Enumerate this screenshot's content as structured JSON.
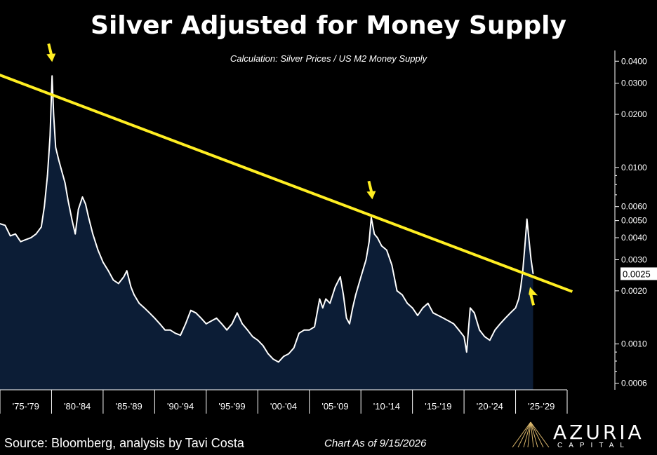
{
  "chart_data": {
    "type": "area",
    "title": "Silver Adjusted for Money Supply",
    "subtitle": "Calculation: Silver Prices / US M2 Money Supply",
    "y_scale": "log",
    "ylim": [
      0.00055,
      0.046
    ],
    "y_ticks": [
      {
        "value": 0.04,
        "label": "0.0400"
      },
      {
        "value": 0.03,
        "label": "0.0300"
      },
      {
        "value": 0.02,
        "label": "0.0200"
      },
      {
        "value": 0.01,
        "label": "0.0100"
      },
      {
        "value": 0.006,
        "label": "0.0060"
      },
      {
        "value": 0.005,
        "label": "0.0050"
      },
      {
        "value": 0.004,
        "label": "0.0040"
      },
      {
        "value": 0.003,
        "label": "0.0030"
      },
      {
        "value": 0.002,
        "label": "0.0020"
      },
      {
        "value": 0.001,
        "label": "0.0010"
      },
      {
        "value": 0.0006,
        "label": "0.0006"
      }
    ],
    "current_value_label": "0.0025",
    "current_value": 0.0025,
    "x_categories": [
      "'75-'79",
      "'80-'84",
      "'85-'89",
      "'90-'94",
      "'95-'99",
      "'00-'04",
      "'05-'09",
      "'10-'14",
      "'15-'19",
      "'20-'24",
      "'25-'29"
    ],
    "xlim": [
      1975,
      2030
    ],
    "series": [
      {
        "x": [
          1975.0,
          1975.5,
          1976.0,
          1976.5,
          1977.0,
          1977.5,
          1978.0,
          1978.5,
          1979.0,
          1979.3,
          1979.6,
          1979.85,
          1980.05,
          1980.2,
          1980.4,
          1980.7,
          1981.0,
          1981.3,
          1981.6,
          1982.0,
          1982.3,
          1982.6,
          1983.0,
          1983.3,
          1983.6,
          1984.0,
          1984.5,
          1985.0,
          1985.5,
          1986.0,
          1986.5,
          1987.0,
          1987.3,
          1987.7,
          1988.0,
          1988.5,
          1989.0,
          1989.5,
          1990.0,
          1990.5,
          1991.0,
          1991.5,
          1992.0,
          1992.5,
          1993.0,
          1993.5,
          1994.0,
          1994.5,
          1995.0,
          1995.5,
          1996.0,
          1996.5,
          1997.0,
          1997.5,
          1998.0,
          1998.5,
          1999.0,
          1999.5,
          2000.0,
          2000.5,
          2001.0,
          2001.5,
          2002.0,
          2002.5,
          2003.0,
          2003.5,
          2004.0,
          2004.5,
          2005.0,
          2005.5,
          2006.0,
          2006.3,
          2006.6,
          2007.0,
          2007.5,
          2008.0,
          2008.3,
          2008.6,
          2008.9,
          2009.2,
          2009.5,
          2010.0,
          2010.5,
          2010.8,
          2011.0,
          2011.3,
          2011.6,
          2012.0,
          2012.5,
          2013.0,
          2013.5,
          2014.0,
          2014.5,
          2015.0,
          2015.5,
          2016.0,
          2016.5,
          2017.0,
          2017.5,
          2018.0,
          2018.5,
          2019.0,
          2019.5,
          2020.0,
          2020.25,
          2020.6,
          2021.0,
          2021.5,
          2022.0,
          2022.5,
          2023.0,
          2023.5,
          2024.0,
          2024.5,
          2025.0,
          2025.3,
          2025.5,
          2025.7,
          2025.9,
          2026.1,
          2026.3,
          2026.5,
          2026.7
        ],
        "y": [
          0.0048,
          0.0047,
          0.0041,
          0.0042,
          0.0038,
          0.0039,
          0.004,
          0.0042,
          0.0046,
          0.006,
          0.009,
          0.015,
          0.033,
          0.02,
          0.013,
          0.011,
          0.0095,
          0.0082,
          0.0065,
          0.005,
          0.0042,
          0.0058,
          0.0068,
          0.0062,
          0.0052,
          0.0042,
          0.0034,
          0.0029,
          0.0026,
          0.0023,
          0.0022,
          0.0024,
          0.0026,
          0.0021,
          0.0019,
          0.0017,
          0.0016,
          0.0015,
          0.0014,
          0.0013,
          0.0012,
          0.0012,
          0.00115,
          0.00112,
          0.0013,
          0.00155,
          0.0015,
          0.0014,
          0.0013,
          0.00135,
          0.0014,
          0.0013,
          0.0012,
          0.0013,
          0.0015,
          0.0013,
          0.0012,
          0.0011,
          0.00105,
          0.00098,
          0.00088,
          0.00082,
          0.00079,
          0.00085,
          0.00088,
          0.00095,
          0.00115,
          0.0012,
          0.0012,
          0.00125,
          0.0018,
          0.0016,
          0.0018,
          0.0017,
          0.0021,
          0.0024,
          0.0019,
          0.0014,
          0.0013,
          0.0016,
          0.0019,
          0.0024,
          0.003,
          0.0038,
          0.0052,
          0.0042,
          0.004,
          0.0036,
          0.0034,
          0.0028,
          0.002,
          0.0019,
          0.0017,
          0.0016,
          0.00145,
          0.0016,
          0.0017,
          0.0015,
          0.00145,
          0.0014,
          0.00135,
          0.0013,
          0.0012,
          0.0011,
          0.0009,
          0.0016,
          0.0015,
          0.0012,
          0.0011,
          0.00105,
          0.0012,
          0.0013,
          0.0014,
          0.0015,
          0.0016,
          0.0018,
          0.0021,
          0.0026,
          0.0036,
          0.0051,
          0.0039,
          0.003,
          0.0025
        ]
      }
    ],
    "trend_line": {
      "start": {
        "x": 1973.5,
        "y": 0.036
      },
      "end": {
        "x": 2030.5,
        "y": 0.00198
      }
    },
    "annotations": [
      {
        "type": "arrow-down",
        "x": 1979.85,
        "y": 0.045
      },
      {
        "type": "arrow-down",
        "x": 2010.9,
        "y": 0.0075
      },
      {
        "type": "arrow-up",
        "x": 2026.6,
        "y": 0.00185
      }
    ],
    "grid": false,
    "legend": "none",
    "colors": {
      "line": "#ffffff",
      "area": "#0c1d36",
      "trend": "#ffee22",
      "background": "#000000",
      "axis": "#ffffff"
    }
  },
  "footer": {
    "source": "Source: Bloomberg, analysis by Tavi Costa",
    "as_of": "Chart As of 9/15/2026",
    "logo_name": "AZURIA",
    "logo_sub": "CAPITAL"
  }
}
